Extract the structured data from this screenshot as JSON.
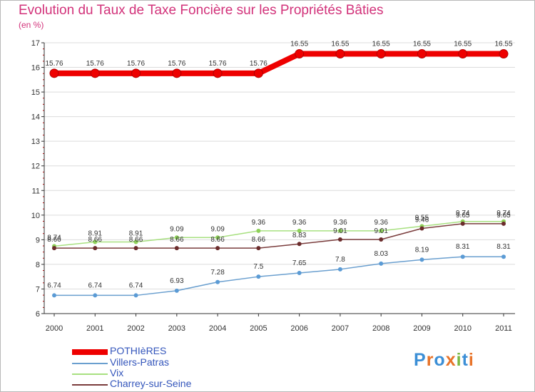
{
  "header": {
    "title": "Evolution du Taux de Taxe Foncière sur les Propriétés Bâties",
    "subtitle": "(en %)"
  },
  "logo": {
    "text": "Proxiti",
    "colors": [
      "#3c8fd6",
      "#e8742a",
      "#3c8fd6",
      "#e8742a",
      "#7bb842",
      "#3c8fd6",
      "#e8742a"
    ]
  },
  "chart_data": {
    "type": "line",
    "title": "Evolution du Taux de Taxe Foncière sur les Propriétés Bâties",
    "ylabel": "(en %)",
    "xlabel": "",
    "categories": [
      "2000",
      "2001",
      "2002",
      "2003",
      "2004",
      "2005",
      "2006",
      "2007",
      "2008",
      "2009",
      "2010",
      "2011"
    ],
    "ylim": [
      6,
      17
    ],
    "yticks": [
      6,
      7,
      8,
      9,
      10,
      11,
      12,
      13,
      14,
      15,
      16,
      17
    ],
    "grid": "horizontal",
    "legend_position": "bottom-left",
    "series": [
      {
        "name": "POTHIèRES",
        "color": "#ee0000",
        "values": [
          15.76,
          15.76,
          15.76,
          15.76,
          15.76,
          15.76,
          16.55,
          16.55,
          16.55,
          16.55,
          16.55,
          16.55
        ],
        "labels": [
          "15.76",
          "15.76",
          "15.76",
          "15.76",
          "15.76",
          "15.76",
          "16.55",
          "16.55",
          "16.55",
          "16.55",
          "16.55",
          "16.55"
        ]
      },
      {
        "name": "Villers-Patras",
        "color": "#6a9fcf",
        "values": [
          6.74,
          6.74,
          6.74,
          6.93,
          7.28,
          7.5,
          7.65,
          7.8,
          8.03,
          8.19,
          8.31,
          8.31
        ],
        "labels": [
          "6.74",
          "6.74",
          "6.74",
          "6.93",
          "7.28",
          "7.5",
          "7.65",
          "7.8",
          "8.03",
          "8.19",
          "8.31",
          "8.31"
        ]
      },
      {
        "name": "Vix",
        "color": "#a8e080",
        "values": [
          8.74,
          8.91,
          8.91,
          9.09,
          9.09,
          9.36,
          9.36,
          9.36,
          9.36,
          9.55,
          9.74,
          9.74
        ],
        "labels": [
          "8.74",
          "8.91",
          "8.91",
          "9.09",
          "9.09",
          "9.36",
          "9.36",
          "9.36",
          "9.36",
          "9.55",
          "9.74",
          "9.74"
        ]
      },
      {
        "name": "Charrey-sur-Seine",
        "color": "#7a3c3c",
        "values": [
          8.66,
          8.66,
          8.66,
          8.66,
          8.66,
          8.66,
          8.83,
          9.01,
          9.01,
          9.46,
          9.65,
          9.65
        ],
        "labels": [
          "8.66",
          "8.66",
          "8.66",
          "8.66",
          "8.66",
          "8.66",
          "8.83",
          "9.01",
          "9.01",
          "9.46",
          "9.65",
          "9.65"
        ]
      }
    ]
  }
}
